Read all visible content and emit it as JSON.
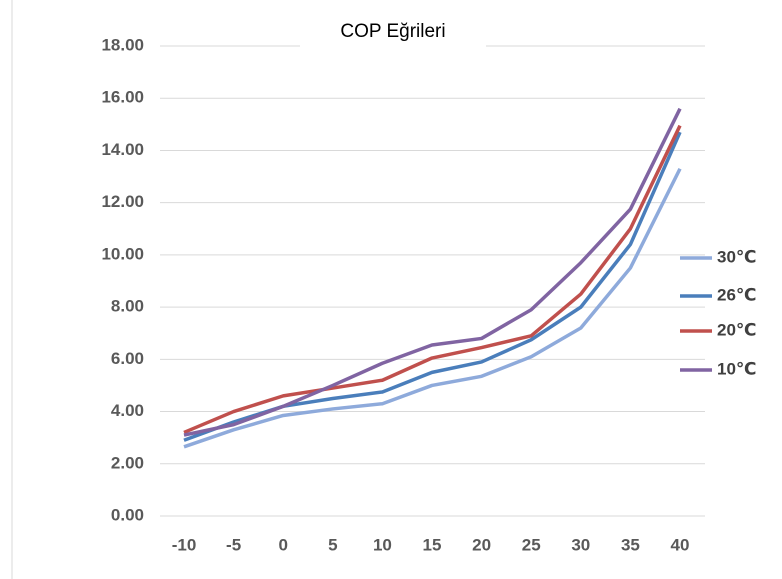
{
  "chart_data": {
    "type": "line",
    "title": "COP Eğrileri",
    "categories": [
      "-10",
      "-5",
      "0",
      "5",
      "10",
      "15",
      "20",
      "25",
      "30",
      "35",
      "40"
    ],
    "series": [
      {
        "name": "30℃",
        "color": "#8eaadb",
        "values": [
          2.65,
          3.3,
          3.85,
          4.1,
          4.3,
          5.0,
          5.35,
          6.1,
          7.2,
          9.5,
          13.3
        ]
      },
      {
        "name": "26℃",
        "color": "#4a7ebb",
        "values": [
          2.9,
          3.6,
          4.2,
          4.5,
          4.75,
          5.5,
          5.9,
          6.75,
          8.0,
          10.4,
          14.7
        ]
      },
      {
        "name": "20℃",
        "color": "#c0504d",
        "values": [
          3.2,
          4.0,
          4.6,
          4.9,
          5.2,
          6.05,
          6.45,
          6.9,
          8.5,
          11.0,
          14.95
        ]
      },
      {
        "name": "10℃",
        "color": "#8064a2",
        "values": [
          3.1,
          3.5,
          4.2,
          5.0,
          5.85,
          6.55,
          6.8,
          7.9,
          9.7,
          11.75,
          15.6
        ]
      }
    ],
    "ylim": [
      0,
      18
    ],
    "yticks": [
      {
        "value": 0,
        "label": "0.00"
      },
      {
        "value": 2,
        "label": "2.00"
      },
      {
        "value": 4,
        "label": "4.00"
      },
      {
        "value": 6,
        "label": "6.00"
      },
      {
        "value": 8,
        "label": "8.00"
      },
      {
        "value": 10,
        "label": "10.00"
      },
      {
        "value": 12,
        "label": "12.00"
      },
      {
        "value": 14,
        "label": "14.00"
      },
      {
        "value": 16,
        "label": "16.00"
      },
      {
        "value": 18,
        "label": "18.00"
      }
    ],
    "grid": true,
    "legend": "right"
  }
}
